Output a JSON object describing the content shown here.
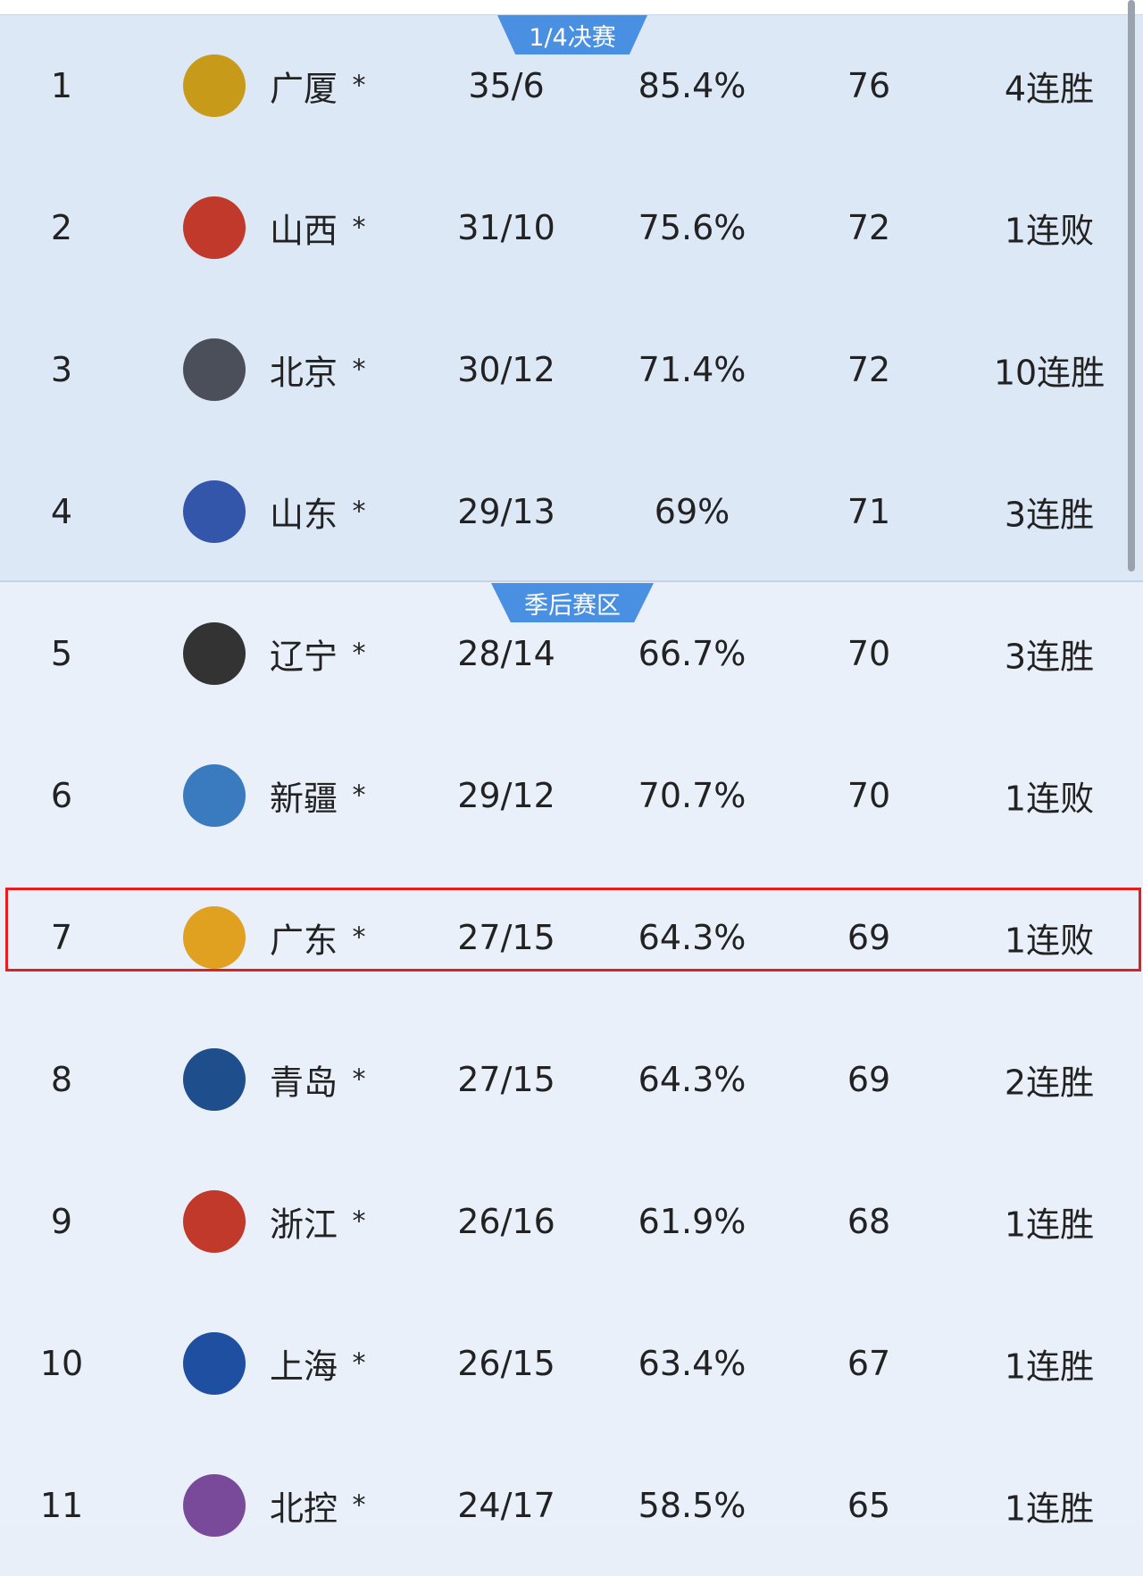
{
  "sections": [
    {
      "label": "1/4决赛"
    },
    {
      "label": "季后赛区"
    }
  ],
  "colors": {
    "badge": "#4a90e2",
    "highlight": "#e02020",
    "quarterfinal_bg": "#dde8f6",
    "playoff_bg": "#e9f0f9"
  },
  "highlighted_rank": 7,
  "rows": [
    {
      "rank": "1",
      "team": "广厦",
      "mark": "*",
      "record": "35/6",
      "pct": "85.4%",
      "pts": "76",
      "streak": "4连胜",
      "logo_color": "#c89a1a"
    },
    {
      "rank": "2",
      "team": "山西",
      "mark": "*",
      "record": "31/10",
      "pct": "75.6%",
      "pts": "72",
      "streak": "1连败",
      "logo_color": "#c0392b"
    },
    {
      "rank": "3",
      "team": "北京",
      "mark": "*",
      "record": "30/12",
      "pct": "71.4%",
      "pts": "72",
      "streak": "10连胜",
      "logo_color": "#4a4f5a"
    },
    {
      "rank": "4",
      "team": "山东",
      "mark": "*",
      "record": "29/13",
      "pct": "69%",
      "pts": "71",
      "streak": "3连胜",
      "logo_color": "#3355aa"
    },
    {
      "rank": "5",
      "team": "辽宁",
      "mark": "*",
      "record": "28/14",
      "pct": "66.7%",
      "pts": "70",
      "streak": "3连胜",
      "logo_color": "#333333"
    },
    {
      "rank": "6",
      "team": "新疆",
      "mark": "*",
      "record": "29/12",
      "pct": "70.7%",
      "pts": "70",
      "streak": "1连败",
      "logo_color": "#3a7bbf"
    },
    {
      "rank": "7",
      "team": "广东",
      "mark": "*",
      "record": "27/15",
      "pct": "64.3%",
      "pts": "69",
      "streak": "1连败",
      "logo_color": "#e0a020"
    },
    {
      "rank": "8",
      "team": "青岛",
      "mark": "*",
      "record": "27/15",
      "pct": "64.3%",
      "pts": "69",
      "streak": "2连胜",
      "logo_color": "#1f4e8c"
    },
    {
      "rank": "9",
      "team": "浙江",
      "mark": "*",
      "record": "26/16",
      "pct": "61.9%",
      "pts": "68",
      "streak": "1连胜",
      "logo_color": "#c0392b"
    },
    {
      "rank": "10",
      "team": "上海",
      "mark": "*",
      "record": "26/15",
      "pct": "63.4%",
      "pts": "67",
      "streak": "1连胜",
      "logo_color": "#1e4fa0"
    },
    {
      "rank": "11",
      "team": "北控",
      "mark": "*",
      "record": "24/17",
      "pct": "58.5%",
      "pts": "65",
      "streak": "1连胜",
      "logo_color": "#7a4a9a"
    }
  ]
}
